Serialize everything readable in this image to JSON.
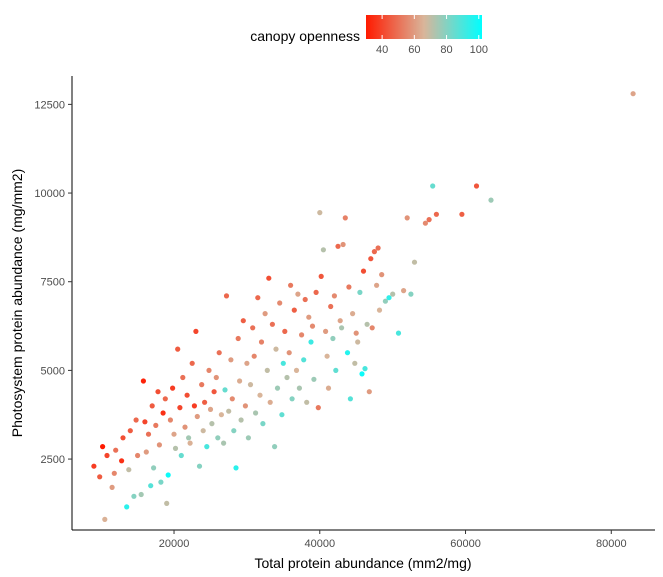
{
  "chart_data": {
    "type": "scatter",
    "xlabel": "Total protein abundance (mm2/mg)",
    "ylabel": "Photosystem protein abundance (mg/mm2)",
    "xlim": [
      6000,
      86000
    ],
    "ylim": [
      500,
      13300
    ],
    "x_ticks": [
      20000,
      40000,
      60000,
      80000
    ],
    "y_ticks": [
      2500,
      5000,
      7500,
      10000,
      12500
    ],
    "x_tick_labels": [
      "20000",
      "40000",
      "60000",
      "80000"
    ],
    "y_tick_labels": [
      "2500",
      "5000",
      "7500",
      "10000",
      "12500"
    ],
    "grid": false,
    "legend": {
      "title": "canopy openness",
      "position": "top",
      "range": [
        30,
        102
      ],
      "ticks": [
        40,
        60,
        80,
        100
      ],
      "tick_labels": [
        "40",
        "60",
        "80",
        "100"
      ],
      "colors": {
        "low": "#ff1a00",
        "mid": "#d9b59a",
        "high": "#00ffff"
      }
    },
    "points": [
      [
        9000,
        2300,
        38
      ],
      [
        9800,
        2000,
        45
      ],
      [
        10200,
        2850,
        30
      ],
      [
        10800,
        2600,
        40
      ],
      [
        10500,
        800,
        65
      ],
      [
        11500,
        1700,
        60
      ],
      [
        11800,
        2100,
        55
      ],
      [
        12000,
        2750,
        50
      ],
      [
        12800,
        2450,
        35
      ],
      [
        13000,
        3100,
        42
      ],
      [
        13500,
        1150,
        95
      ],
      [
        13800,
        2200,
        70
      ],
      [
        14000,
        3300,
        45
      ],
      [
        14500,
        1450,
        80
      ],
      [
        14800,
        3600,
        48
      ],
      [
        15000,
        2600,
        55
      ],
      [
        15500,
        1500,
        75
      ],
      [
        15800,
        4700,
        32
      ],
      [
        16000,
        3550,
        40
      ],
      [
        16200,
        2700,
        60
      ],
      [
        16500,
        3200,
        50
      ],
      [
        16800,
        1750,
        88
      ],
      [
        17000,
        4000,
        45
      ],
      [
        17200,
        2250,
        78
      ],
      [
        17500,
        3450,
        52
      ],
      [
        17800,
        4400,
        42
      ],
      [
        18000,
        2900,
        58
      ],
      [
        18200,
        1850,
        82
      ],
      [
        18500,
        3800,
        35
      ],
      [
        18800,
        4200,
        48
      ],
      [
        19000,
        1250,
        70
      ],
      [
        19200,
        2050,
        100
      ],
      [
        19500,
        3600,
        55
      ],
      [
        19800,
        4500,
        38
      ],
      [
        20000,
        3200,
        62
      ],
      [
        20200,
        2800,
        72
      ],
      [
        20500,
        5600,
        45
      ],
      [
        20800,
        3950,
        40
      ],
      [
        21000,
        2600,
        85
      ],
      [
        21200,
        4800,
        50
      ],
      [
        21500,
        3400,
        58
      ],
      [
        21800,
        4300,
        42
      ],
      [
        22000,
        3100,
        75
      ],
      [
        22200,
        2950,
        65
      ],
      [
        22500,
        5200,
        48
      ],
      [
        22800,
        4000,
        38
      ],
      [
        23000,
        6100,
        40
      ],
      [
        23200,
        3700,
        60
      ],
      [
        23500,
        2300,
        80
      ],
      [
        23800,
        4600,
        52
      ],
      [
        24000,
        3300,
        68
      ],
      [
        24200,
        4100,
        46
      ],
      [
        24500,
        2850,
        90
      ],
      [
        24800,
        5000,
        55
      ],
      [
        25000,
        3900,
        62
      ],
      [
        25200,
        3500,
        72
      ],
      [
        25500,
        4400,
        44
      ],
      [
        25800,
        4800,
        58
      ],
      [
        26000,
        3100,
        78
      ],
      [
        26200,
        5500,
        50
      ],
      [
        26500,
        3750,
        66
      ],
      [
        26800,
        2950,
        74
      ],
      [
        27000,
        4450,
        85
      ],
      [
        27200,
        7100,
        48
      ],
      [
        27500,
        3850,
        70
      ],
      [
        27800,
        5300,
        60
      ],
      [
        28000,
        4200,
        56
      ],
      [
        28200,
        3300,
        80
      ],
      [
        28500,
        2250,
        95
      ],
      [
        28800,
        5900,
        52
      ],
      [
        29000,
        4700,
        64
      ],
      [
        29200,
        3600,
        72
      ],
      [
        29500,
        6400,
        46
      ],
      [
        29800,
        4000,
        58
      ],
      [
        30000,
        5200,
        62
      ],
      [
        30200,
        3100,
        76
      ],
      [
        30500,
        4600,
        68
      ],
      [
        30800,
        6200,
        50
      ],
      [
        31000,
        5400,
        55
      ],
      [
        31200,
        3800,
        74
      ],
      [
        31500,
        7050,
        48
      ],
      [
        31800,
        4300,
        66
      ],
      [
        32000,
        5800,
        54
      ],
      [
        32200,
        3500,
        82
      ],
      [
        32500,
        6600,
        60
      ],
      [
        32800,
        5000,
        70
      ],
      [
        33000,
        7600,
        42
      ],
      [
        33200,
        4100,
        64
      ],
      [
        33500,
        6300,
        50
      ],
      [
        33800,
        2850,
        78
      ],
      [
        34000,
        5600,
        68
      ],
      [
        34200,
        4500,
        76
      ],
      [
        34500,
        6900,
        56
      ],
      [
        34800,
        3750,
        86
      ],
      [
        35000,
        5200,
        90
      ],
      [
        35200,
        6100,
        48
      ],
      [
        35500,
        4800,
        72
      ],
      [
        35800,
        5500,
        58
      ],
      [
        36000,
        7400,
        52
      ],
      [
        36200,
        4200,
        80
      ],
      [
        36500,
        6700,
        46
      ],
      [
        36800,
        5000,
        66
      ],
      [
        37000,
        7150,
        62
      ],
      [
        37200,
        4500,
        74
      ],
      [
        37500,
        6000,
        55
      ],
      [
        37800,
        5300,
        88
      ],
      [
        38000,
        7000,
        50
      ],
      [
        38200,
        4100,
        70
      ],
      [
        38500,
        6500,
        60
      ],
      [
        38800,
        5800,
        92
      ],
      [
        39000,
        6250,
        56
      ],
      [
        39200,
        4750,
        76
      ],
      [
        39500,
        7200,
        48
      ],
      [
        39800,
        3950,
        52
      ],
      [
        40000,
        9450,
        68
      ],
      [
        40200,
        7650,
        44
      ],
      [
        40500,
        8400,
        72
      ],
      [
        40800,
        6100,
        60
      ],
      [
        41000,
        5400,
        66
      ],
      [
        41200,
        4500,
        64
      ],
      [
        41500,
        6800,
        50
      ],
      [
        41800,
        5900,
        78
      ],
      [
        42000,
        7100,
        56
      ],
      [
        42200,
        5000,
        86
      ],
      [
        42500,
        8500,
        48
      ],
      [
        42800,
        6400,
        62
      ],
      [
        43000,
        6200,
        74
      ],
      [
        43200,
        8550,
        58
      ],
      [
        43500,
        9300,
        54
      ],
      [
        43800,
        5500,
        96
      ],
      [
        44000,
        7350,
        52
      ],
      [
        44200,
        4200,
        88
      ],
      [
        44500,
        6600,
        64
      ],
      [
        44800,
        5200,
        70
      ],
      [
        45000,
        6050,
        58
      ],
      [
        45200,
        5800,
        68
      ],
      [
        45500,
        7200,
        82
      ],
      [
        45800,
        4900,
        100
      ],
      [
        46000,
        7800,
        42
      ],
      [
        46200,
        5050,
        90
      ],
      [
        46500,
        6300,
        72
      ],
      [
        46800,
        4400,
        60
      ],
      [
        47000,
        8150,
        44
      ],
      [
        47200,
        6200,
        55
      ],
      [
        47500,
        8350,
        48
      ],
      [
        47800,
        7400,
        62
      ],
      [
        48000,
        8450,
        50
      ],
      [
        48200,
        6700,
        66
      ],
      [
        48500,
        7700,
        58
      ],
      [
        49000,
        6950,
        78
      ],
      [
        49500,
        7050,
        94
      ],
      [
        50000,
        7150,
        72
      ],
      [
        50800,
        6050,
        90
      ],
      [
        51500,
        7250,
        62
      ],
      [
        52000,
        9300,
        58
      ],
      [
        52500,
        7150,
        80
      ],
      [
        53000,
        8050,
        70
      ],
      [
        54500,
        9150,
        56
      ],
      [
        55000,
        9250,
        50
      ],
      [
        55500,
        10200,
        85
      ],
      [
        56000,
        9400,
        48
      ],
      [
        59500,
        9400,
        46
      ],
      [
        61500,
        10200,
        44
      ],
      [
        63500,
        9800,
        76
      ],
      [
        83000,
        12800,
        62
      ]
    ]
  }
}
